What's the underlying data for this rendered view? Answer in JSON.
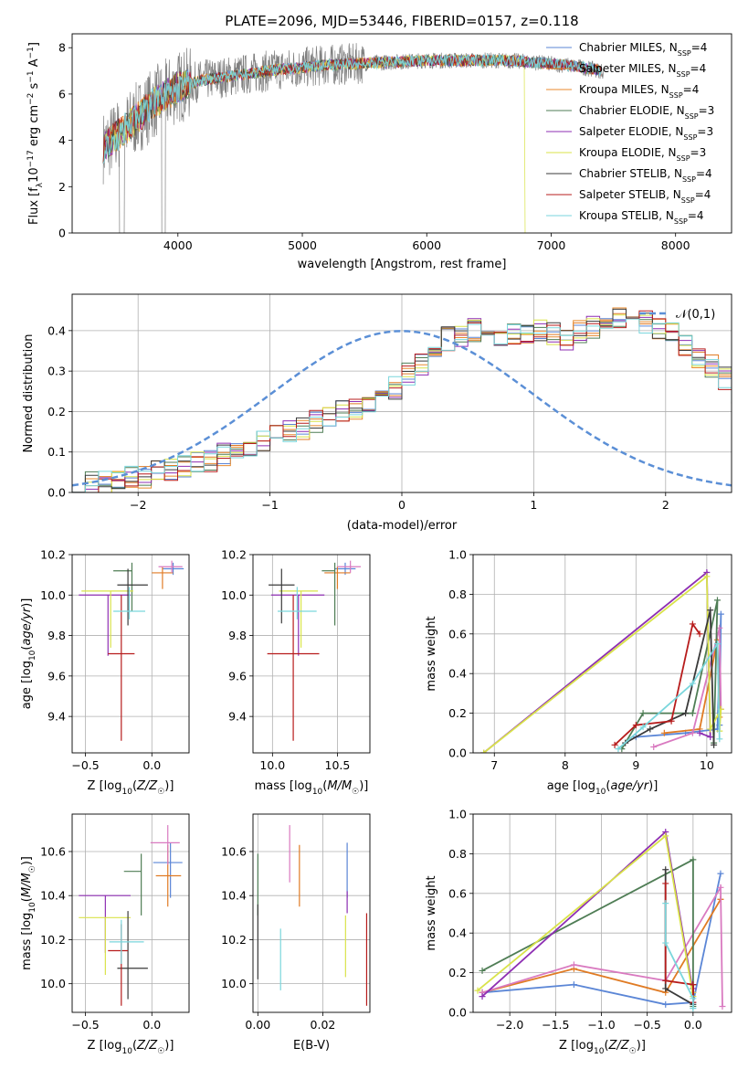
{
  "title": "PLATE=2096, MJD=53446, FIBERID=0157, z=0.118",
  "chart_data": [
    {
      "id": "spectrum",
      "type": "line",
      "xlabel": "wavelength [Angstrom, rest frame]",
      "ylabel": "Flux [f_λ 10^-17 erg cm^-2 s^-1 A^-1]",
      "xlim": [
        3150,
        8450
      ],
      "ylim": [
        0,
        8.6
      ],
      "xticks": [
        4000,
        5000,
        6000,
        7000,
        8000
      ],
      "yticks": [
        0,
        2,
        4,
        6,
        8
      ],
      "grid": false,
      "legend_position": "right",
      "data_series": {
        "name": "data",
        "color": "#808080"
      },
      "series": [
        {
          "name": "Chabrier MILES, N_SSP=4",
          "color": "#5b86d6"
        },
        {
          "name": "Salpeter MILES, N_SSP=4",
          "color": "#e07b24"
        },
        {
          "name": "Kroupa MILES, N_SSP=4",
          "color": "#e88a2e"
        },
        {
          "name": "Chabrier ELODIE, N_SSP=3",
          "color": "#4f7d55"
        },
        {
          "name": "Salpeter ELODIE, N_SSP=3",
          "color": "#8e2fb3"
        },
        {
          "name": "Kroupa ELODIE, N_SSP=3",
          "color": "#d9e34a"
        },
        {
          "name": "Chabrier STELIB, N_SSP=4",
          "color": "#3a3a3a"
        },
        {
          "name": "Salpeter STELIB, N_SSP=4",
          "color": "#b71c1c"
        },
        {
          "name": "Kroupa STELIB, N_SSP=4",
          "color": "#7ad6dc"
        }
      ],
      "continuum": {
        "x": [
          3400,
          3600,
          3800,
          4000,
          4200,
          4400,
          4600,
          4800,
          5000,
          5200,
          5400,
          5600,
          5800,
          6000,
          6200,
          6400,
          6600,
          6800,
          7000,
          7200,
          7400
        ],
        "y": [
          3.7,
          4.6,
          5.6,
          6.3,
          6.6,
          6.75,
          6.9,
          7.05,
          7.15,
          7.25,
          7.3,
          7.35,
          7.4,
          7.45,
          7.45,
          7.45,
          7.45,
          7.4,
          7.3,
          7.2,
          7.0
        ]
      }
    },
    {
      "id": "residuals",
      "type": "line",
      "xlabel": "(data-model)/error",
      "ylabel": "Normed distribution",
      "xlim": [
        -2.5,
        2.5
      ],
      "ylim": [
        0,
        0.49
      ],
      "xticks": [
        -2,
        -1,
        0,
        1,
        2
      ],
      "yticks": [
        0.0,
        0.1,
        0.2,
        0.3,
        0.4
      ],
      "grid": true,
      "legend_position": "top-right",
      "legend": "𝒩(0,1)",
      "bin_width": 0.1,
      "mean_histogram": [
        0.03,
        0.025,
        0.025,
        0.03,
        0.035,
        0.04,
        0.05,
        0.06,
        0.065,
        0.07,
        0.08,
        0.095,
        0.105,
        0.12,
        0.13,
        0.14,
        0.15,
        0.16,
        0.175,
        0.19,
        0.2,
        0.21,
        0.22,
        0.23,
        0.26,
        0.29,
        0.32,
        0.35,
        0.38,
        0.39,
        0.4,
        0.39,
        0.385,
        0.395,
        0.39,
        0.4,
        0.39,
        0.38,
        0.4,
        0.41,
        0.42,
        0.43,
        0.44,
        0.42,
        0.41,
        0.39,
        0.36,
        0.33,
        0.31,
        0.28,
        0.25,
        0.22,
        0.19,
        0.16,
        0.14,
        0.12,
        0.1,
        0.09,
        0.08,
        0.07,
        0.06,
        0.05,
        0.045,
        0.04,
        0.035,
        0.03,
        0.025,
        0.02
      ]
    },
    {
      "id": "age-vs-Z",
      "type": "scatter",
      "xlabel": "Z [log10(Z/Z☉)]",
      "ylabel": "age [log10(age/yr)]",
      "xlim": [
        -0.6,
        0.28
      ],
      "ylim": [
        9.22,
        10.2
      ],
      "xticks": [
        -0.5,
        0.0
      ],
      "yticks": [
        9.4,
        9.6,
        9.8,
        10.0,
        10.2
      ],
      "grid": true,
      "points": [
        {
          "color": "#5b86d6",
          "x": 0.16,
          "y": 10.13,
          "xerr": [
            0.08,
            0.08
          ],
          "yerr": [
            0.03,
            0.03
          ]
        },
        {
          "color": "#e07b24",
          "x": 0.08,
          "y": 10.11,
          "xerr": [
            0.08,
            0.08
          ],
          "yerr": [
            0.08,
            0.03
          ]
        },
        {
          "color": "#d97ac0",
          "x": 0.15,
          "y": 10.14,
          "xerr": [
            0.1,
            0.08
          ],
          "yerr": [
            0.03,
            0.03
          ]
        },
        {
          "color": "#4f7d55",
          "x": -0.15,
          "y": 10.12,
          "xerr": [
            0.14,
            0.0
          ],
          "yerr": [
            0.2,
            0.04
          ]
        },
        {
          "color": "#8e2fb3",
          "x": -0.33,
          "y": 10.0,
          "xerr": [
            0.22,
            0.17
          ],
          "yerr": [
            0.3,
            0.0
          ]
        },
        {
          "color": "#d9e34a",
          "x": -0.31,
          "y": 10.02,
          "xerr": [
            0.22,
            0.17
          ],
          "yerr": [
            0.28,
            0.0
          ]
        },
        {
          "color": "#3a3a3a",
          "x": -0.18,
          "y": 10.05,
          "xerr": [
            0.08,
            0.15
          ],
          "yerr": [
            0.2,
            0.08
          ]
        },
        {
          "color": "#b71c1c",
          "x": -0.23,
          "y": 9.71,
          "xerr": [
            0.1,
            0.1
          ],
          "yerr": [
            0.43,
            0.29
          ]
        },
        {
          "color": "#7ad6dc",
          "x": -0.17,
          "y": 9.92,
          "xerr": [
            0.12,
            0.12
          ],
          "yerr": [
            0.04,
            0.12
          ]
        }
      ]
    },
    {
      "id": "age-vs-mass",
      "type": "scatter",
      "xlabel": "mass [log10(M/M☉)]",
      "ylabel": "",
      "xlim": [
        9.85,
        10.75
      ],
      "ylim": [
        9.22,
        10.2
      ],
      "xticks": [
        10.0,
        10.5
      ],
      "yticks": [
        9.4,
        9.6,
        9.8,
        10.0,
        10.2
      ],
      "grid": true,
      "points": [
        {
          "color": "#5b86d6",
          "x": 10.56,
          "y": 10.13,
          "xerr": [
            0.08,
            0.08
          ],
          "yerr": [
            0.03,
            0.03
          ]
        },
        {
          "color": "#e07b24",
          "x": 10.5,
          "y": 10.11,
          "xerr": [
            0.1,
            0.1
          ],
          "yerr": [
            0.08,
            0.03
          ]
        },
        {
          "color": "#d97ac0",
          "x": 10.6,
          "y": 10.14,
          "xerr": [
            0.1,
            0.08
          ],
          "yerr": [
            0.03,
            0.03
          ]
        },
        {
          "color": "#4f7d55",
          "x": 10.48,
          "y": 10.12,
          "xerr": [
            0.1,
            0.0
          ],
          "yerr": [
            0.27,
            0.04
          ]
        },
        {
          "color": "#8e2fb3",
          "x": 10.2,
          "y": 10.0,
          "xerr": [
            0.21,
            0.2
          ],
          "yerr": [
            0.3,
            0.0
          ]
        },
        {
          "color": "#d9e34a",
          "x": 10.22,
          "y": 10.02,
          "xerr": [
            0.17,
            0.13
          ],
          "yerr": [
            0.28,
            0.0
          ]
        },
        {
          "color": "#3a3a3a",
          "x": 10.07,
          "y": 10.05,
          "xerr": [
            0.1,
            0.1
          ],
          "yerr": [
            0.19,
            0.08
          ]
        },
        {
          "color": "#b71c1c",
          "x": 10.16,
          "y": 9.71,
          "xerr": [
            0.2,
            0.2
          ],
          "yerr": [
            0.43,
            0.29
          ]
        },
        {
          "color": "#7ad6dc",
          "x": 10.19,
          "y": 9.92,
          "xerr": [
            0.15,
            0.15
          ],
          "yerr": [
            0.04,
            0.12
          ]
        }
      ]
    },
    {
      "id": "weight-vs-age",
      "type": "line",
      "xlabel": "age [log10(age/yr)]",
      "ylabel": "mass weight",
      "xlim": [
        6.7,
        10.35
      ],
      "ylim": [
        0,
        1.0
      ],
      "xticks": [
        7,
        8,
        9,
        10
      ],
      "yticks": [
        0.0,
        0.2,
        0.4,
        0.6,
        0.8,
        1.0
      ],
      "grid": true,
      "series": [
        {
          "color": "#5b86d6",
          "x": [
            9.0,
            9.7,
            10.15,
            10.2,
            10.18
          ],
          "y": [
            0.08,
            0.1,
            0.12,
            0.7,
            0.14
          ]
        },
        {
          "color": "#e07b24",
          "x": [
            9.4,
            9.9,
            10.15,
            10.18
          ],
          "y": [
            0.1,
            0.12,
            0.57,
            0.18
          ]
        },
        {
          "color": "#d97ac0",
          "x": [
            9.25,
            9.8,
            10.18,
            10.2
          ],
          "y": [
            0.03,
            0.1,
            0.63,
            0.22
          ]
        },
        {
          "color": "#4f7d55",
          "x": [
            8.8,
            9.1,
            9.8,
            10.15,
            10.1
          ],
          "y": [
            0.02,
            0.2,
            0.2,
            0.77,
            0.05
          ]
        },
        {
          "color": "#8e2fb3",
          "x": [
            6.85,
            10.0,
            10.05,
            9.9
          ],
          "y": [
            0.0,
            0.91,
            0.08,
            0.1
          ]
        },
        {
          "color": "#d9e34a",
          "x": [
            6.85,
            10.0,
            10.05,
            10.2,
            10.18
          ],
          "y": [
            0.0,
            0.89,
            0.12,
            0.22,
            0.11
          ]
        },
        {
          "color": "#3a3a3a",
          "x": [
            8.85,
            9.2,
            9.7,
            10.05,
            10.1
          ],
          "y": [
            0.05,
            0.12,
            0.2,
            0.72,
            0.04
          ]
        },
        {
          "color": "#b71c1c",
          "x": [
            8.7,
            9.0,
            9.5,
            9.8,
            9.9
          ],
          "y": [
            0.04,
            0.14,
            0.16,
            0.65,
            0.6
          ]
        },
        {
          "color": "#7ad6dc",
          "x": [
            8.75,
            9.1,
            9.8,
            10.15,
            10.18
          ],
          "y": [
            0.02,
            0.13,
            0.35,
            0.55,
            0.07
          ]
        }
      ]
    },
    {
      "id": "mass-vs-Z",
      "type": "scatter",
      "xlabel": "Z [log10(Z/Z☉)]",
      "ylabel": "mass [log10(M/M☉)]",
      "xlim": [
        -0.6,
        0.28
      ],
      "ylim": [
        9.87,
        10.77
      ],
      "xticks": [
        -0.5,
        0.0
      ],
      "yticks": [
        10.0,
        10.2,
        10.4,
        10.6
      ],
      "grid": true,
      "points": [
        {
          "color": "#5b86d6",
          "x": 0.14,
          "y": 10.55,
          "xerr": [
            0.13,
            0.09
          ],
          "yerr": [
            0.16,
            0.09
          ]
        },
        {
          "color": "#e07b24",
          "x": 0.12,
          "y": 10.49,
          "xerr": [
            0.09,
            0.1
          ],
          "yerr": [
            0.14,
            0.14
          ]
        },
        {
          "color": "#d97ac0",
          "x": 0.12,
          "y": 10.64,
          "xerr": [
            0.13,
            0.09
          ],
          "yerr": [
            0.1,
            0.08
          ]
        },
        {
          "color": "#4f7d55",
          "x": -0.08,
          "y": 10.51,
          "xerr": [
            0.13,
            0.0
          ],
          "yerr": [
            0.2,
            0.08
          ]
        },
        {
          "color": "#8e2fb3",
          "x": -0.35,
          "y": 10.4,
          "xerr": [
            0.2,
            0.19
          ],
          "yerr": [
            0.26,
            0.0
          ]
        },
        {
          "color": "#d9e34a",
          "x": -0.35,
          "y": 10.3,
          "xerr": [
            0.2,
            0.19
          ],
          "yerr": [
            0.26,
            0.0
          ]
        },
        {
          "color": "#3a3a3a",
          "x": -0.18,
          "y": 10.07,
          "xerr": [
            0.08,
            0.15
          ],
          "yerr": [
            0.14,
            0.26
          ]
        },
        {
          "color": "#b71c1c",
          "x": -0.23,
          "y": 10.15,
          "xerr": [
            0.1,
            0.05
          ],
          "yerr": [
            0.25,
            0.12
          ]
        },
        {
          "color": "#7ad6dc",
          "x": -0.23,
          "y": 10.19,
          "xerr": [
            0.09,
            0.17
          ],
          "yerr": [
            0.1,
            0.1
          ]
        }
      ]
    },
    {
      "id": "mass-vs-ebv",
      "type": "scatter",
      "xlabel": "E(B-V)",
      "ylabel": "",
      "xlim": [
        -0.0015,
        0.0345
      ],
      "ylim": [
        9.87,
        10.77
      ],
      "xticks": [
        0.0,
        0.02
      ],
      "yticks": [
        10.0,
        10.2,
        10.4,
        10.6
      ],
      "grid": true,
      "points": [
        {
          "color": "#5b86d6",
          "x": 0.0275,
          "y": 10.55,
          "xerr": [
            0,
            0
          ],
          "yerr": [
            0.16,
            0.09
          ]
        },
        {
          "color": "#e07b24",
          "x": 0.0128,
          "y": 10.49,
          "xerr": [
            0,
            0
          ],
          "yerr": [
            0.14,
            0.14
          ]
        },
        {
          "color": "#d97ac0",
          "x": 0.0098,
          "y": 10.64,
          "xerr": [
            0,
            0
          ],
          "yerr": [
            0.18,
            0.08
          ]
        },
        {
          "color": "#4f7d55",
          "x": 0.0,
          "y": 10.51,
          "xerr": [
            0,
            0
          ],
          "yerr": [
            0.2,
            0.08
          ]
        },
        {
          "color": "#8e2fb3",
          "x": 0.0275,
          "y": 10.37,
          "xerr": [
            0,
            0
          ],
          "yerr": [
            0.05,
            0.05
          ]
        },
        {
          "color": "#d9e34a",
          "x": 0.027,
          "y": 10.17,
          "xerr": [
            0,
            0
          ],
          "yerr": [
            0.14,
            0.14
          ]
        },
        {
          "color": "#3a3a3a",
          "x": 0.0,
          "y": 10.22,
          "xerr": [
            0,
            0
          ],
          "yerr": [
            0.2,
            0.14
          ]
        },
        {
          "color": "#b71c1c",
          "x": 0.0335,
          "y": 10.11,
          "xerr": [
            0,
            0
          ],
          "yerr": [
            0.21,
            0.21
          ]
        },
        {
          "color": "#7ad6dc",
          "x": 0.007,
          "y": 10.11,
          "xerr": [
            0,
            0
          ],
          "yerr": [
            0.14,
            0.14
          ]
        }
      ]
    },
    {
      "id": "weight-vs-Z",
      "type": "line",
      "xlabel": "Z [log10(Z/Z☉)]",
      "ylabel": "mass weight",
      "xlim": [
        -2.4,
        0.42
      ],
      "ylim": [
        0,
        1.0
      ],
      "xticks": [
        -2.0,
        -1.5,
        -1.0,
        -0.5,
        0.0
      ],
      "yticks": [
        0.0,
        0.2,
        0.4,
        0.6,
        0.8,
        1.0
      ],
      "grid": true,
      "series": [
        {
          "color": "#5b86d6",
          "x": [
            -2.3,
            -1.3,
            -0.3,
            0.0,
            0.3
          ],
          "y": [
            0.1,
            0.14,
            0.04,
            0.05,
            0.7
          ]
        },
        {
          "color": "#e07b24",
          "x": [
            -2.3,
            -1.3,
            -0.3,
            0.3,
            0.3
          ],
          "y": [
            0.1,
            0.22,
            0.1,
            0.57,
            0.57
          ]
        },
        {
          "color": "#d97ac0",
          "x": [
            -2.3,
            -1.3,
            -0.3,
            0.3,
            0.32
          ],
          "y": [
            0.1,
            0.24,
            0.16,
            0.63,
            0.03
          ]
        },
        {
          "color": "#4f7d55",
          "x": [
            -2.3,
            0.0,
            0.0
          ],
          "y": [
            0.21,
            0.77,
            0.03
          ]
        },
        {
          "color": "#8e2fb3",
          "x": [
            -2.3,
            -0.3,
            0.0,
            0.0
          ],
          "y": [
            0.08,
            0.91,
            0.1,
            0.12
          ]
        },
        {
          "color": "#d9e34a",
          "x": [
            -2.35,
            -0.3,
            0.0,
            0.0
          ],
          "y": [
            0.11,
            0.89,
            0.08,
            0.1
          ]
        },
        {
          "color": "#3a3a3a",
          "x": [
            -0.3,
            -0.3,
            0.0,
            0.0
          ],
          "y": [
            0.72,
            0.12,
            0.04,
            0.14
          ]
        },
        {
          "color": "#b71c1c",
          "x": [
            -0.3,
            -0.3,
            0.0,
            0.0
          ],
          "y": [
            0.65,
            0.16,
            0.14,
            0.05
          ]
        },
        {
          "color": "#7ad6dc",
          "x": [
            -0.3,
            -0.3,
            0.0,
            0.0
          ],
          "y": [
            0.55,
            0.35,
            0.07,
            0.02
          ]
        }
      ]
    }
  ]
}
